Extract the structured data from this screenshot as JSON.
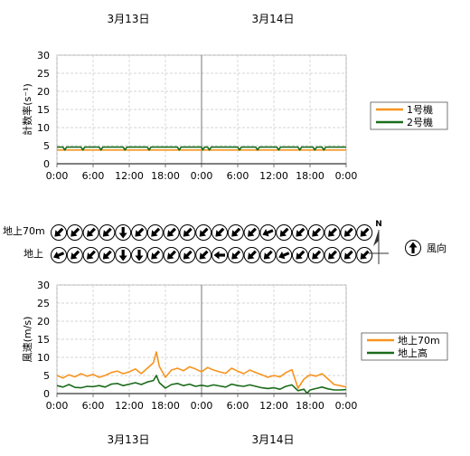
{
  "dates_top": [
    "3月13日",
    "3月14日"
  ],
  "dates_bottom": [
    "3月13日",
    "3月14日"
  ],
  "x_ticks": [
    "0:00",
    "6:00",
    "12:00",
    "18:00",
    "0:00",
    "6:00",
    "12:00",
    "18:00",
    "0:00"
  ],
  "direction_rows": [
    "地上70m",
    "地上"
  ],
  "compass_label": "N",
  "wind_dir_legend": "風向",
  "colors": {
    "orange": "#f7941d",
    "green": "#1a6b1a",
    "grid": "#c8c8c8"
  },
  "directions": {
    "upper": [
      "SW",
      "SW",
      "SW",
      "SW",
      "S",
      "SW",
      "SW",
      "SW",
      "SW",
      "SW",
      "SW",
      "SW",
      "SW",
      "WSW",
      "SW",
      "SW",
      "SW",
      "SW",
      "SW",
      "SW"
    ],
    "lower": [
      "WSW",
      "SW",
      "SW",
      "SW",
      "S",
      "S",
      "SW",
      "SW",
      "SW",
      "SW",
      "W",
      "SW",
      "SW",
      "SW",
      "WSW",
      "SW",
      "SW",
      "SW",
      "SW",
      "SW"
    ]
  },
  "chart_data": [
    {
      "type": "line",
      "ylabel": "計数率(s⁻¹)",
      "ylim": [
        0,
        30
      ],
      "yticks": [
        0,
        5,
        10,
        15,
        20,
        25,
        30
      ],
      "x_range_hours": [
        0,
        48
      ],
      "grid": true,
      "legend_position": "right",
      "series": [
        {
          "name": "1号機",
          "color": "#f7941d",
          "points": [
            [
              0,
              3.8
            ],
            [
              48,
              3.8
            ]
          ]
        },
        {
          "name": "2号機",
          "color": "#1a6b1a",
          "points": [
            [
              0,
              4.6
            ],
            [
              1,
              4.6
            ],
            [
              1.3,
              3.8
            ],
            [
              1.6,
              4.6
            ],
            [
              4,
              4.6
            ],
            [
              4.3,
              3.8
            ],
            [
              4.6,
              4.6
            ],
            [
              7,
              4.6
            ],
            [
              7.3,
              3.8
            ],
            [
              7.6,
              4.6
            ],
            [
              11,
              4.6
            ],
            [
              11.3,
              3.8
            ],
            [
              11.6,
              4.6
            ],
            [
              15,
              4.6
            ],
            [
              15.3,
              3.8
            ],
            [
              15.6,
              4.6
            ],
            [
              20,
              4.6
            ],
            [
              20.3,
              3.8
            ],
            [
              20.6,
              4.6
            ],
            [
              24,
              4.6
            ],
            [
              24.2,
              3.8
            ],
            [
              24.5,
              4.6
            ],
            [
              25,
              4.6
            ],
            [
              25.3,
              3.8
            ],
            [
              25.6,
              4.6
            ],
            [
              30,
              4.6
            ],
            [
              30.3,
              3.8
            ],
            [
              30.6,
              4.6
            ],
            [
              33,
              4.6
            ],
            [
              33.3,
              3.8
            ],
            [
              33.6,
              4.6
            ],
            [
              36.5,
              4.6
            ],
            [
              36.8,
              3.8
            ],
            [
              37.1,
              4.6
            ],
            [
              40,
              4.6
            ],
            [
              40.3,
              3.8
            ],
            [
              40.6,
              4.6
            ],
            [
              42.5,
              4.6
            ],
            [
              42.8,
              3.8
            ],
            [
              43.1,
              4.6
            ],
            [
              44,
              4.6
            ],
            [
              44.3,
              3.8
            ],
            [
              44.6,
              4.6
            ],
            [
              48,
              4.6
            ]
          ]
        }
      ]
    },
    {
      "type": "line",
      "ylabel": "風速(m/s)",
      "ylim": [
        0,
        30
      ],
      "yticks": [
        0,
        5,
        10,
        15,
        20,
        25,
        30
      ],
      "x_range_hours": [
        0,
        48
      ],
      "grid": true,
      "legend_position": "right",
      "series": [
        {
          "name": "地上70m",
          "color": "#f7941d",
          "points": [
            [
              0,
              5.0
            ],
            [
              1,
              4.3
            ],
            [
              2,
              5.2
            ],
            [
              3,
              4.6
            ],
            [
              4,
              5.5
            ],
            [
              5,
              4.8
            ],
            [
              6,
              5.3
            ],
            [
              7,
              4.5
            ],
            [
              8,
              5.0
            ],
            [
              9,
              5.8
            ],
            [
              10,
              6.2
            ],
            [
              11,
              5.5
            ],
            [
              12,
              6.0
            ],
            [
              13,
              6.8
            ],
            [
              14,
              5.5
            ],
            [
              15,
              7.0
            ],
            [
              16,
              8.5
            ],
            [
              16.5,
              11.5
            ],
            [
              17,
              7.5
            ],
            [
              18,
              4.5
            ],
            [
              19,
              6.5
            ],
            [
              20,
              7.0
            ],
            [
              21,
              6.3
            ],
            [
              22,
              7.4
            ],
            [
              23,
              6.8
            ],
            [
              24,
              6.0
            ],
            [
              25,
              7.2
            ],
            [
              26,
              6.5
            ],
            [
              27,
              6.0
            ],
            [
              28,
              5.6
            ],
            [
              29,
              7.0
            ],
            [
              30,
              6.2
            ],
            [
              31,
              5.5
            ],
            [
              32,
              6.5
            ],
            [
              33,
              5.8
            ],
            [
              34,
              5.2
            ],
            [
              35,
              4.5
            ],
            [
              36,
              5.0
            ],
            [
              37,
              4.6
            ],
            [
              38,
              5.8
            ],
            [
              39,
              6.6
            ],
            [
              40,
              1.5
            ],
            [
              41,
              4.0
            ],
            [
              42,
              5.2
            ],
            [
              43,
              4.8
            ],
            [
              44,
              5.5
            ],
            [
              45,
              4.0
            ],
            [
              46,
              2.5
            ],
            [
              47,
              2.2
            ],
            [
              48,
              1.8
            ]
          ]
        },
        {
          "name": "地上高",
          "color": "#1a6b1a",
          "points": [
            [
              0,
              2.2
            ],
            [
              1,
              1.8
            ],
            [
              2,
              2.5
            ],
            [
              3,
              1.7
            ],
            [
              4,
              1.6
            ],
            [
              5,
              2.0
            ],
            [
              6,
              1.9
            ],
            [
              7,
              2.2
            ],
            [
              8,
              1.8
            ],
            [
              9,
              2.6
            ],
            [
              10,
              2.8
            ],
            [
              11,
              2.2
            ],
            [
              12,
              2.6
            ],
            [
              13,
              3.0
            ],
            [
              14,
              2.5
            ],
            [
              15,
              3.2
            ],
            [
              16,
              3.6
            ],
            [
              16.5,
              5.0
            ],
            [
              17,
              3.0
            ],
            [
              18,
              1.5
            ],
            [
              19,
              2.5
            ],
            [
              20,
              2.8
            ],
            [
              21,
              2.2
            ],
            [
              22,
              2.6
            ],
            [
              23,
              2.0
            ],
            [
              24,
              2.3
            ],
            [
              25,
              2.0
            ],
            [
              26,
              2.4
            ],
            [
              27,
              2.1
            ],
            [
              28,
              1.8
            ],
            [
              29,
              2.6
            ],
            [
              30,
              2.2
            ],
            [
              31,
              2.0
            ],
            [
              32,
              2.4
            ],
            [
              33,
              2.0
            ],
            [
              34,
              1.6
            ],
            [
              35,
              1.4
            ],
            [
              36,
              1.6
            ],
            [
              37,
              1.2
            ],
            [
              38,
              2.0
            ],
            [
              39,
              2.4
            ],
            [
              40,
              0.8
            ],
            [
              41,
              1.2
            ],
            [
              41.5,
              0.1
            ],
            [
              42,
              1.0
            ],
            [
              43,
              1.4
            ],
            [
              44,
              1.8
            ],
            [
              45,
              1.3
            ],
            [
              46,
              1.0
            ],
            [
              47,
              1.0
            ],
            [
              48,
              1.1
            ]
          ]
        }
      ]
    }
  ]
}
